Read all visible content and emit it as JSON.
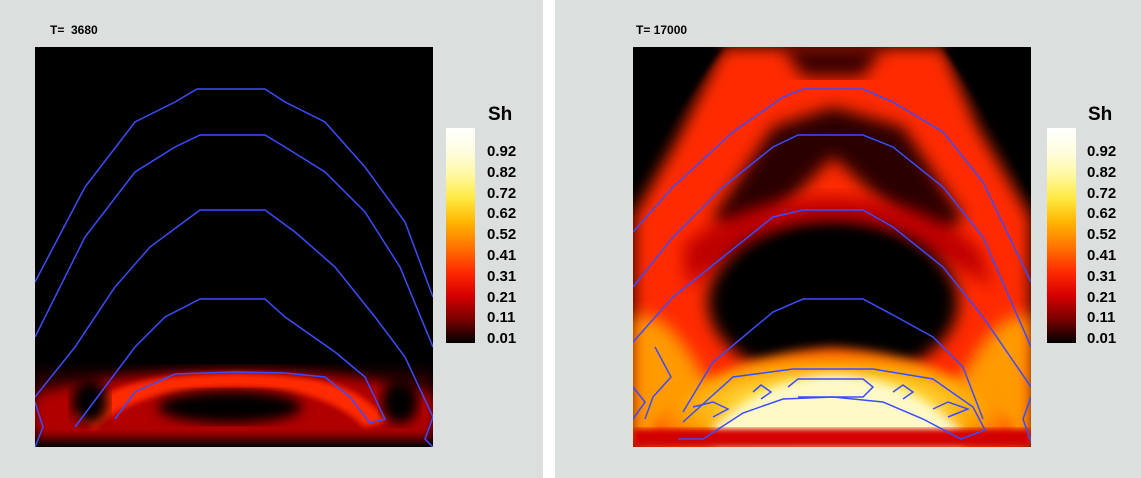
{
  "colorbar": {
    "title": "Sh",
    "ticks": [
      "0.92",
      "0.82",
      "0.72",
      "0.62",
      "0.52",
      "0.41",
      "0.31",
      "0.21",
      "0.11",
      "0.01"
    ],
    "colors": [
      "#ffffff",
      "#fffde0",
      "#fff8a0",
      "#ffe840",
      "#ffb400",
      "#ff7000",
      "#ff2a00",
      "#d60000",
      "#7a0000",
      "#000000"
    ]
  },
  "chart_data": [
    {
      "type": "heatmap",
      "title": "T=  3680",
      "variable": "Sh",
      "colorbar_range": [
        0.01,
        0.92
      ],
      "contour_color": "#3a4cff",
      "contour_count": 4,
      "description_of_field": "low saturation everywhere except a thin red band along the bottom boundary"
    },
    {
      "type": "heatmap",
      "title": "T= 17000",
      "variable": "Sh",
      "colorbar_range": [
        0.01,
        0.92
      ],
      "contour_color": "#3a4cff",
      "contour_count": 4,
      "description_of_field": "red arch bands between contours, bright yellow-white arch near the bottom"
    }
  ]
}
